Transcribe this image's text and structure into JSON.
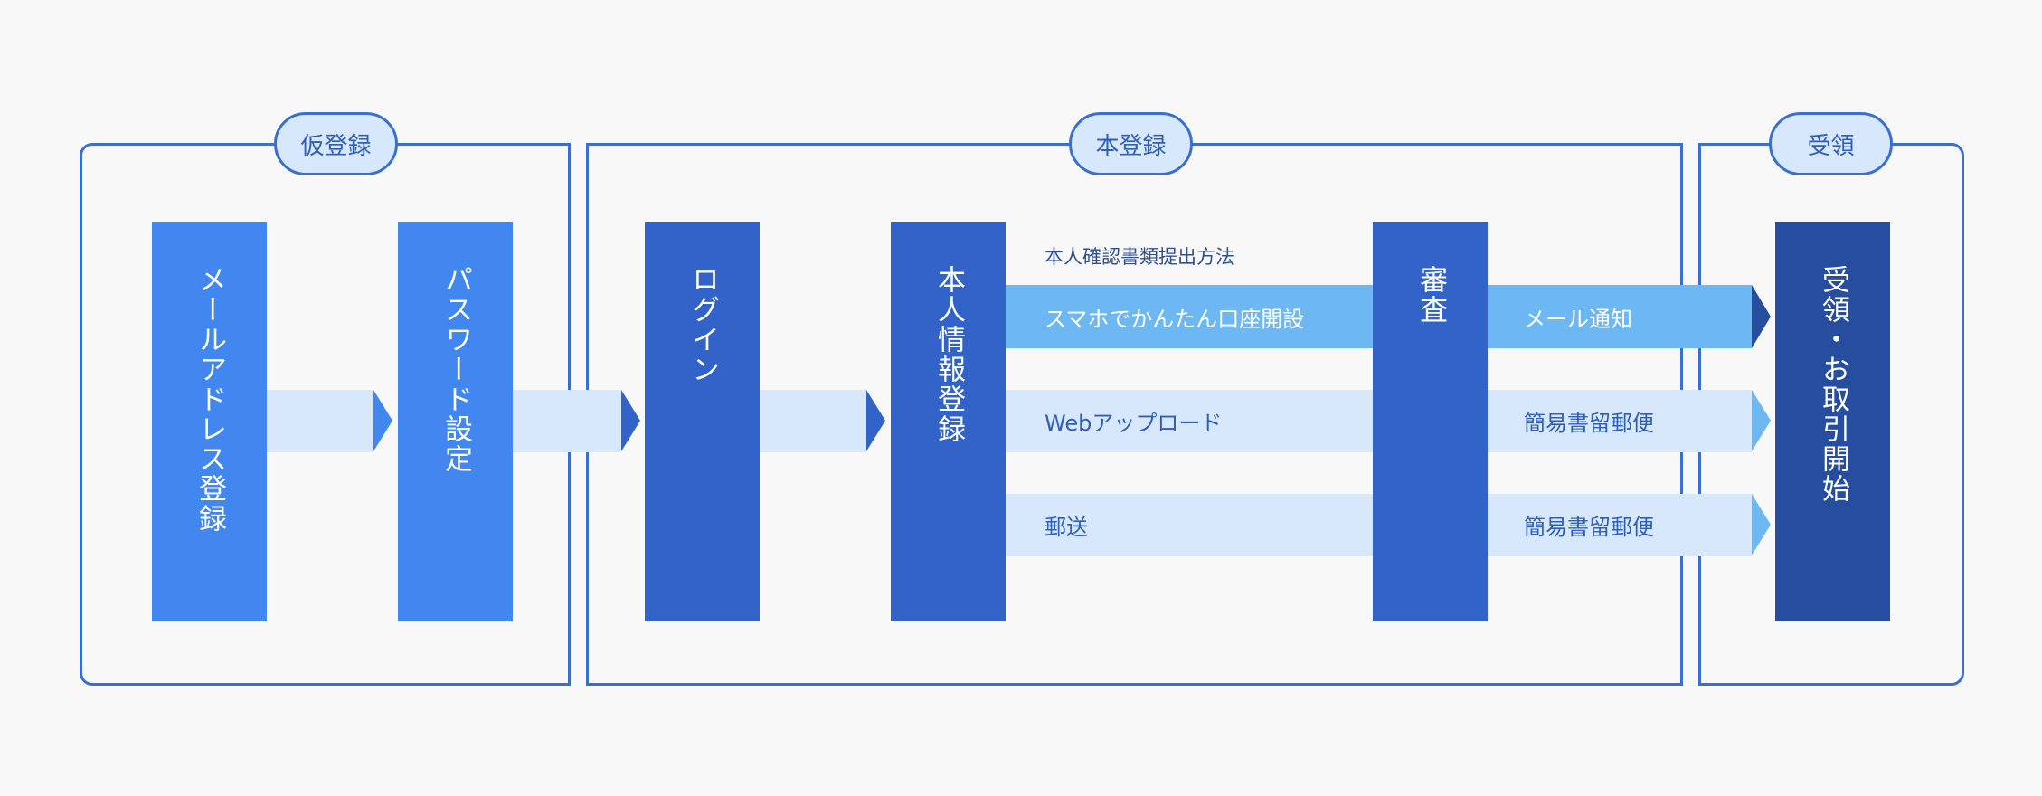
{
  "colors": {
    "background": "#f8f8f8",
    "border": "#3a6fd0",
    "step_light": "#4287f0",
    "step_mid": "#3163c9",
    "step_dark": "#274d9e",
    "band_light": "#d8e8fc",
    "band_highlight": "#6db8f2"
  },
  "groups": [
    {
      "label": "仮登録"
    },
    {
      "label": "本登録"
    },
    {
      "label": "受領"
    }
  ],
  "steps": [
    {
      "label": "メールアドレス登録"
    },
    {
      "label": "パスワード設定"
    },
    {
      "label": "ログイン"
    },
    {
      "label": "本人情報登録"
    },
    {
      "label": "審査"
    },
    {
      "label": "受領・お取引開始"
    }
  ],
  "submission_methods": {
    "heading": "本人確認書類提出方法",
    "rows": [
      {
        "method": "スマホでかんたん口座開設",
        "delivery": "メール通知"
      },
      {
        "method": "Webアップロード",
        "delivery": "簡易書留郵便"
      },
      {
        "method": "郵送",
        "delivery": "簡易書留郵便"
      }
    ]
  }
}
